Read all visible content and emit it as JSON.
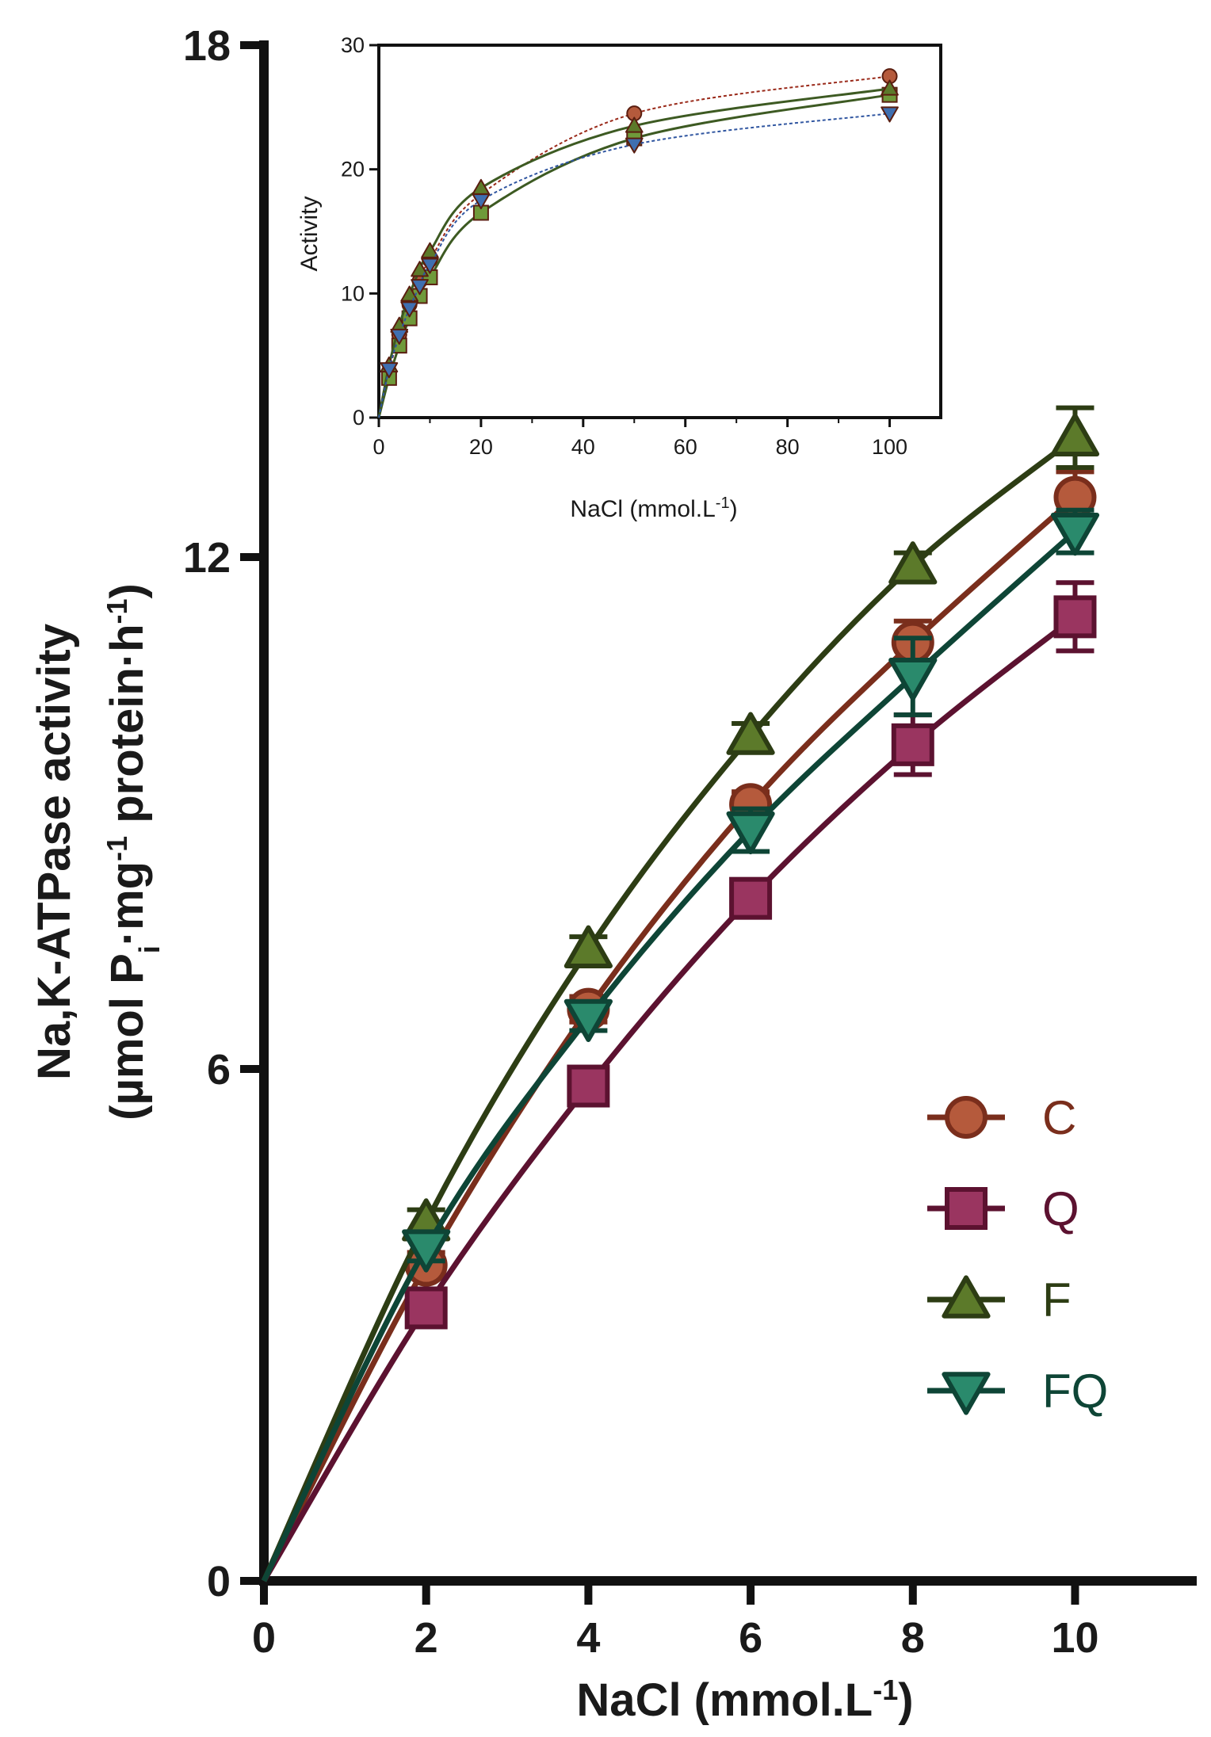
{
  "chart_data": [
    {
      "type": "line",
      "role": "main",
      "x": [
        0,
        2,
        4,
        6,
        8,
        10
      ],
      "xlabel": "NaCl (mmol.L",
      "xlabel_sup": "-1",
      "xlabel_close": ")",
      "ylabel_line1": "Na,K-ATPase activity",
      "ylabel_line2": {
        "p1": "(µmol P",
        "sub": "i",
        "p2": "·mg",
        "sup1": "-1",
        "p3": " protein·h",
        "sup2": "-1",
        "p4": ")"
      },
      "xlim": [
        0,
        11.5
      ],
      "ylim": [
        0,
        18
      ],
      "xticks": [
        0,
        2,
        4,
        6,
        8,
        10
      ],
      "yticks": [
        0,
        6,
        12,
        18
      ],
      "grid": false,
      "legend_placement": "lower-right",
      "series": [
        {
          "name": "C",
          "marker": "circle",
          "color": "#7a2e1c",
          "fill": "#b55a3c",
          "points": [
            {
              "x": 2,
              "y": 3.7,
              "err": 0.15
            },
            {
              "x": 4,
              "y": 6.7,
              "err": 0.15
            },
            {
              "x": 6,
              "y": 9.1,
              "err": 0.15
            },
            {
              "x": 8,
              "y": 11.0,
              "err": 0.25
            },
            {
              "x": 10,
              "y": 12.7,
              "err": 0.3
            }
          ]
        },
        {
          "name": "Q",
          "marker": "square",
          "color": "#5c1230",
          "fill": "#9a3560",
          "points": [
            {
              "x": 2,
              "y": 3.2,
              "err": 0.15
            },
            {
              "x": 4,
              "y": 5.8,
              "err": 0.15
            },
            {
              "x": 6,
              "y": 8.0,
              "err": 0.15
            },
            {
              "x": 8,
              "y": 9.8,
              "err": 0.35
            },
            {
              "x": 10,
              "y": 11.3,
              "err": 0.4
            }
          ]
        },
        {
          "name": "F",
          "marker": "triangle-up",
          "color": "#2d3d14",
          "fill": "#5c7a2a",
          "points": [
            {
              "x": 2,
              "y": 4.2,
              "err": 0.15
            },
            {
              "x": 4,
              "y": 7.4,
              "err": 0.15
            },
            {
              "x": 6,
              "y": 9.9,
              "err": 0.15
            },
            {
              "x": 8,
              "y": 11.9,
              "err": 0.15
            },
            {
              "x": 10,
              "y": 13.4,
              "err": 0.35
            }
          ]
        },
        {
          "name": "FQ",
          "marker": "triangle-down",
          "color": "#0e4536",
          "fill": "#2a8a6c",
          "points": [
            {
              "x": 2,
              "y": 3.9,
              "err": 0.15
            },
            {
              "x": 4,
              "y": 6.6,
              "err": 0.15
            },
            {
              "x": 6,
              "y": 8.8,
              "err": 0.25
            },
            {
              "x": 8,
              "y": 10.6,
              "err": 0.45
            },
            {
              "x": 10,
              "y": 12.3,
              "err": 0.25
            }
          ]
        }
      ]
    },
    {
      "type": "line",
      "role": "inset",
      "x": [
        0,
        2,
        4,
        6,
        8,
        10,
        20,
        50,
        100
      ],
      "xlabel": "NaCl (mmol.L",
      "xlabel_sup": "-1",
      "xlabel_close": ")",
      "ylabel": "Activity",
      "xlim": [
        0,
        110
      ],
      "ylim": [
        0,
        30
      ],
      "xticks": [
        0,
        20,
        40,
        60,
        80,
        100
      ],
      "yticks": [
        0,
        10,
        20,
        30
      ],
      "grid": false,
      "series": [
        {
          "name": "C",
          "marker": "circle",
          "color": "#7a2e1c",
          "fill": "#b55a3c",
          "points": [
            {
              "x": 2,
              "y": 3.7
            },
            {
              "x": 4,
              "y": 6.7
            },
            {
              "x": 6,
              "y": 9.1
            },
            {
              "x": 8,
              "y": 11.0
            },
            {
              "x": 10,
              "y": 12.7
            },
            {
              "x": 20,
              "y": 18.0
            },
            {
              "x": 50,
              "y": 24.5
            },
            {
              "x": 100,
              "y": 27.5
            }
          ]
        },
        {
          "name": "Q",
          "marker": "square",
          "color": "#5c1230",
          "fill": "#6f9a3a",
          "points": [
            {
              "x": 2,
              "y": 3.2
            },
            {
              "x": 4,
              "y": 5.8
            },
            {
              "x": 6,
              "y": 8.0
            },
            {
              "x": 8,
              "y": 9.8
            },
            {
              "x": 10,
              "y": 11.3
            },
            {
              "x": 20,
              "y": 16.5
            },
            {
              "x": 50,
              "y": 22.5
            },
            {
              "x": 100,
              "y": 26.0
            }
          ]
        },
        {
          "name": "F",
          "marker": "triangle-up",
          "color": "#2d3d14",
          "fill": "#5c7a2a",
          "points": [
            {
              "x": 2,
              "y": 4.2
            },
            {
              "x": 4,
              "y": 7.4
            },
            {
              "x": 6,
              "y": 9.9
            },
            {
              "x": 8,
              "y": 11.9
            },
            {
              "x": 10,
              "y": 13.4
            },
            {
              "x": 20,
              "y": 18.5
            },
            {
              "x": 50,
              "y": 23.5
            },
            {
              "x": 100,
              "y": 26.5
            }
          ]
        },
        {
          "name": "FQ",
          "marker": "triangle-down",
          "color": "#0e4536",
          "fill": "#3f6fb0",
          "points": [
            {
              "x": 2,
              "y": 3.9
            },
            {
              "x": 4,
              "y": 6.6
            },
            {
              "x": 6,
              "y": 8.8
            },
            {
              "x": 8,
              "y": 10.6
            },
            {
              "x": 10,
              "y": 12.3
            },
            {
              "x": 20,
              "y": 17.5
            },
            {
              "x": 50,
              "y": 22.0
            },
            {
              "x": 100,
              "y": 24.5
            }
          ]
        }
      ]
    }
  ]
}
